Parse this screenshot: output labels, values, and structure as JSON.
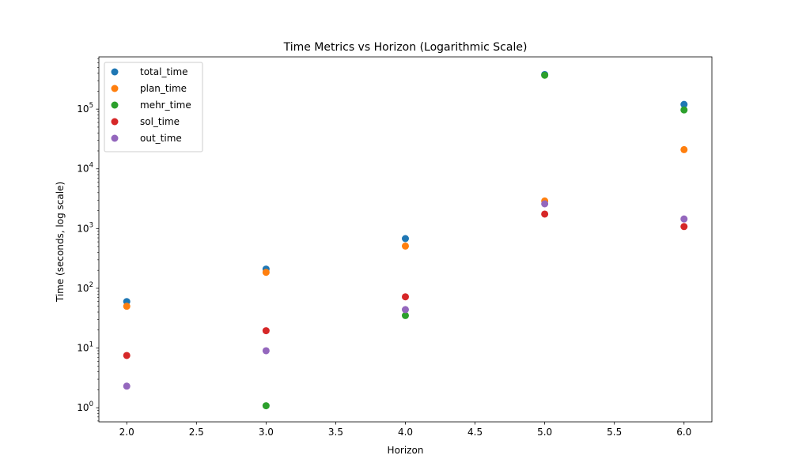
{
  "chart_data": {
    "type": "scatter",
    "title": "Time Metrics vs Horizon (Logarithmic Scale)",
    "xlabel": "Horizon",
    "ylabel": "Time (seconds, log scale)",
    "yscale": "log",
    "xlim": [
      1.8,
      6.2
    ],
    "ylim": [
      0.58,
      750000
    ],
    "x_ticks": [
      2.0,
      2.5,
      3.0,
      3.5,
      4.0,
      4.5,
      5.0,
      5.5,
      6.0
    ],
    "x_tick_labels": [
      "2.0",
      "2.5",
      "3.0",
      "3.5",
      "4.0",
      "4.5",
      "5.0",
      "5.5",
      "6.0"
    ],
    "y_ticks": [
      1,
      10,
      100,
      1000,
      10000,
      100000
    ],
    "y_tick_labels": [
      {
        "base": "10",
        "exp": "0"
      },
      {
        "base": "10",
        "exp": "1"
      },
      {
        "base": "10",
        "exp": "2"
      },
      {
        "base": "10",
        "exp": "3"
      },
      {
        "base": "10",
        "exp": "4"
      },
      {
        "base": "10",
        "exp": "5"
      }
    ],
    "grid": false,
    "legend_position": "top-left",
    "x": [
      2,
      3,
      4,
      5,
      6
    ],
    "series": [
      {
        "name": "total_time",
        "color": "#1f77b4",
        "values": [
          60,
          210,
          680,
          380000,
          120000
        ]
      },
      {
        "name": "plan_time",
        "color": "#ff7f0e",
        "values": [
          50,
          185,
          510,
          2900,
          21000
        ]
      },
      {
        "name": "mehr_time",
        "color": "#2ca02c",
        "values": [
          null,
          1.08,
          35,
          370000,
          97000
        ]
      },
      {
        "name": "sol_time",
        "color": "#d62728",
        "values": [
          7.5,
          19.5,
          72,
          1750,
          1080
        ]
      },
      {
        "name": "out_time",
        "color": "#9467bd",
        "values": [
          2.3,
          9,
          44,
          2600,
          1450
        ]
      }
    ]
  }
}
